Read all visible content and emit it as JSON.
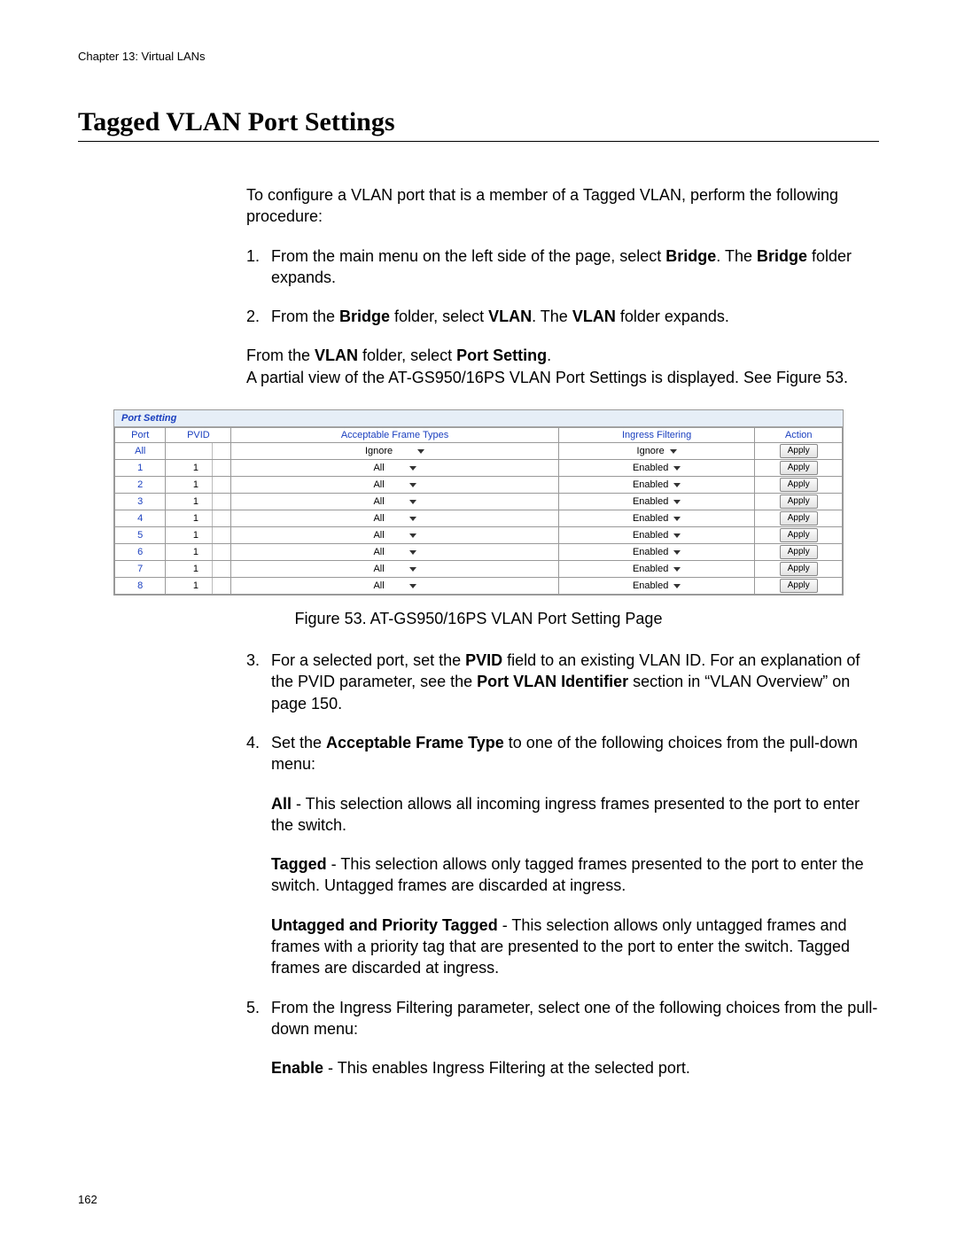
{
  "header": {
    "chapter": "Chapter 13: Virtual LANs"
  },
  "title": "Tagged VLAN Port Settings",
  "intro": "To configure a VLAN port that is a member of a Tagged VLAN, perform the following procedure:",
  "steps": {
    "s1_num": "1.",
    "s1_a": "From the main menu on the left side of the page, select ",
    "s1_b": "Bridge",
    "s1_c": ". The ",
    "s1_d": "Bridge",
    "s1_e": " folder expands.",
    "s2_num": "2.",
    "s2_a": "From the ",
    "s2_b": "Bridge",
    "s2_c": " folder, select ",
    "s2_d": "VLAN",
    "s2_e": ". The ",
    "s2_f": "VLAN",
    "s2_g": " folder expands.",
    "s2x_a": "From the ",
    "s2x_b": "VLAN",
    "s2x_c": " folder, select ",
    "s2x_d": "Port Setting",
    "s2x_e": ".",
    "s2x_line2": "A partial view of the AT-GS950/16PS VLAN Port Settings is displayed. See Figure 53.",
    "s3_num": "3.",
    "s3_a": "For a selected port, set the ",
    "s3_b": "PVID",
    "s3_c": " field to an existing VLAN ID. For an explanation of the PVID parameter, see the ",
    "s3_d": "Port VLAN Identifier",
    "s3_e": " section in “VLAN Overview” on page 150.",
    "s4_num": "4.",
    "s4_a": "Set the ",
    "s4_b": "Acceptable Frame Type",
    "s4_c": " to one of the following choices from the pull-down menu:",
    "s4_all_b": "All",
    "s4_all_t": " - This selection allows all incoming ingress frames presented to the port to enter the switch.",
    "s4_tag_b": "Tagged",
    "s4_tag_t": " - This selection allows only tagged frames presented to the port to enter the switch. Untagged frames are discarded at ingress.",
    "s4_unt_b": "Untagged and Priority Tagged",
    "s4_unt_t": " - This selection allows only untagged frames and frames with a priority tag that are presented to the port to enter the switch. Tagged frames are discarded at ingress.",
    "s5_num": "5.",
    "s5_t": "From the Ingress Filtering parameter, select one of the following choices from the pull-down menu:",
    "s5_en_b": "Enable",
    "s5_en_t": " - This enables Ingress Filtering at the selected port."
  },
  "figure": {
    "panel_title": "Port Setting",
    "caption": "Figure 53. AT-GS950/16PS VLAN Port Setting Page",
    "columns": {
      "port": "Port",
      "pvid": "PVID",
      "aft": "Acceptable Frame Types",
      "ingress": "Ingress Filtering",
      "action": "Action"
    },
    "col_widths": {
      "port": "7%",
      "pvid": "9%",
      "aft": "45%",
      "ingress": "27%",
      "action": "12%"
    },
    "apply_label": "Apply",
    "rows": [
      {
        "port": "All",
        "pvid": "",
        "aft": "Ignore",
        "ingress": "Ignore"
      },
      {
        "port": "1",
        "pvid": "1",
        "aft": "All",
        "ingress": "Enabled"
      },
      {
        "port": "2",
        "pvid": "1",
        "aft": "All",
        "ingress": "Enabled"
      },
      {
        "port": "3",
        "pvid": "1",
        "aft": "All",
        "ingress": "Enabled"
      },
      {
        "port": "4",
        "pvid": "1",
        "aft": "All",
        "ingress": "Enabled"
      },
      {
        "port": "5",
        "pvid": "1",
        "aft": "All",
        "ingress": "Enabled"
      },
      {
        "port": "6",
        "pvid": "1",
        "aft": "All",
        "ingress": "Enabled"
      },
      {
        "port": "7",
        "pvid": "1",
        "aft": "All",
        "ingress": "Enabled"
      },
      {
        "port": "8",
        "pvid": "1",
        "aft": "All",
        "ingress": "Enabled"
      }
    ]
  },
  "page_number": "162",
  "colors": {
    "link_blue": "#1a3fbf",
    "panel_bg": "#e6eef7",
    "border": "#999999"
  }
}
